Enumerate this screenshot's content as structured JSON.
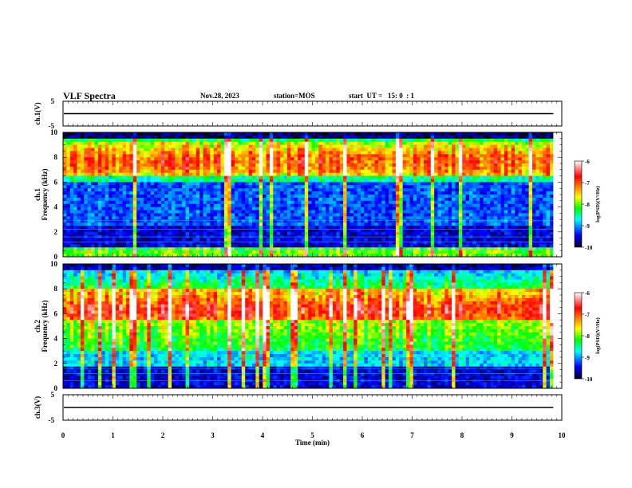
{
  "header": {
    "title": "VLF Spectra",
    "date": "Nov.28, 2023",
    "station": "station=MOS",
    "start": "start  UT =   15: 0  : 1"
  },
  "chart_data": [
    {
      "type": "line",
      "panel": "ch1-waveform",
      "ylabel": "ch.1(V)",
      "ylim": [
        -5,
        5
      ],
      "yticks": [
        "5",
        "-5"
      ],
      "xlim": [
        0,
        10
      ],
      "series": [
        {
          "values_approx": 0,
          "note": "flat trace near zero"
        }
      ]
    },
    {
      "type": "heatmap",
      "panel": "ch1-spectrogram",
      "ylabel": "ch.1\nFrequency (kHz)",
      "ylabel_line1": "ch.1",
      "ylabel_line2": "Frequency (kHz)",
      "ylim": [
        0,
        10
      ],
      "yticks": [
        "0",
        "2",
        "4",
        "6",
        "8",
        "10"
      ],
      "xlim": [
        0,
        10
      ],
      "data_extent_min": 9.83,
      "intense_band_khz": [
        6.5,
        9.3
      ],
      "weak_band_khz": [
        2.5,
        6.0
      ],
      "colorbar": {
        "label": "log(PSD)(V²/Hz)",
        "range": [
          -10,
          -6
        ],
        "ticks": [
          "-6",
          "-7",
          "-8",
          "-9",
          "-10"
        ],
        "colors": [
          "#ffffff",
          "#ff0000",
          "#ffff00",
          "#00ff00",
          "#00ffff",
          "#0000ff",
          "#000000"
        ]
      }
    },
    {
      "type": "heatmap",
      "panel": "ch2-spectrogram",
      "ylabel_line1": "ch.2",
      "ylabel_line2": "Frequency (kHz)",
      "ylim": [
        0,
        10
      ],
      "yticks": [
        "0",
        "2",
        "4",
        "6",
        "8",
        "10"
      ],
      "xlim": [
        0,
        10
      ],
      "data_extent_min": 9.83,
      "intense_band_khz": [
        5.5,
        8.0
      ],
      "colorbar": {
        "label": "log(PSD)(V²/Hz)",
        "range": [
          -10,
          -6
        ],
        "ticks": [
          "-6",
          "-7",
          "-8",
          "-9",
          "-10"
        ]
      }
    },
    {
      "type": "line",
      "panel": "ch3-waveform",
      "ylabel": "ch.3(V)",
      "ylim": [
        -5,
        5
      ],
      "yticks": [
        "5",
        "-5"
      ],
      "xlim": [
        0,
        10
      ],
      "xlabel": "Time  (min)",
      "xticks": [
        "0",
        "1",
        "2",
        "3",
        "4",
        "5",
        "6",
        "7",
        "8",
        "9",
        "10"
      ],
      "series": [
        {
          "values_approx": 0,
          "note": "flat trace near zero"
        }
      ]
    }
  ]
}
